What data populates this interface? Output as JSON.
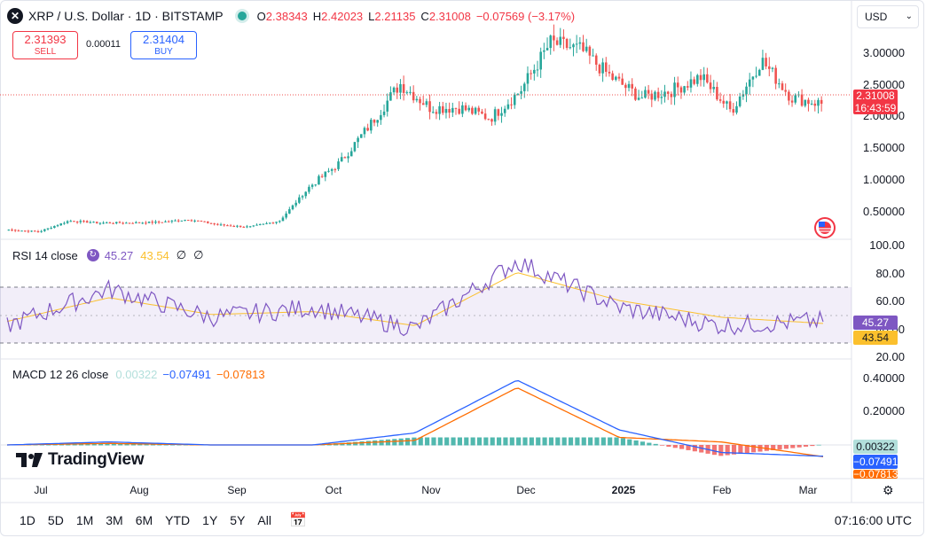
{
  "header": {
    "symbol_title": "XRP / U.S. Dollar · 1D · BITSTAMP",
    "open_label": "O",
    "open": "2.38343",
    "high_label": "H",
    "high": "2.42023",
    "low_label": "L",
    "low": "2.21135",
    "close_label": "C",
    "close": "2.31008",
    "change": "−0.07569 (−3.17%)"
  },
  "trade": {
    "sell_price": "2.31393",
    "sell_label": "SELL",
    "spread": "0.00011",
    "buy_price": "2.31404",
    "buy_label": "BUY"
  },
  "currency": "USD",
  "price_axis": {
    "ticks": [
      "3.00000",
      "2.50000",
      "2.00000",
      "1.50000",
      "1.00000",
      "0.50000"
    ],
    "last_price": "2.31008",
    "countdown": "16:43:59"
  },
  "rsi": {
    "label": "RSI 14 close",
    "value": "45.27",
    "ma_value": "43.54",
    "extra1": "∅",
    "extra2": "∅",
    "ticks": [
      "100.00",
      "80.00",
      "60.00",
      "40.00",
      "20.00"
    ]
  },
  "macd": {
    "label": "MACD 12 26 close",
    "histogram": "0.00322",
    "macd": "−0.07491",
    "signal": "−0.07813",
    "ticks": [
      "0.40000",
      "0.20000"
    ]
  },
  "time_axis": [
    "Jul",
    "Aug",
    "Sep",
    "Oct",
    "Nov",
    "Dec",
    "2025",
    "Feb",
    "Mar"
  ],
  "branding": "TradingView",
  "timeframes": [
    "1D",
    "5D",
    "1M",
    "3M",
    "6M",
    "YTD",
    "1Y",
    "5Y",
    "All"
  ],
  "clock": "07:16:00 UTC",
  "colors": {
    "up": "#26a69a",
    "down": "#ef5350",
    "rsi": "#7e57c2",
    "rsi_ma": "#fbc02d",
    "macd": "#2962ff",
    "signal": "#ff6d00"
  },
  "chart_data": [
    {
      "type": "candlestick",
      "title": "XRP / U.S. Dollar · 1D · BITSTAMP",
      "x": [
        "2024-07-01",
        "2024-07-15",
        "2024-08-01",
        "2024-08-15",
        "2024-09-01",
        "2024-09-15",
        "2024-10-01",
        "2024-10-15",
        "2024-11-01",
        "2024-11-10",
        "2024-11-20",
        "2024-11-25",
        "2024-12-01",
        "2024-12-03",
        "2024-12-10",
        "2024-12-20",
        "2025-01-01",
        "2025-01-10",
        "2025-01-16",
        "2025-01-25",
        "2025-02-01",
        "2025-02-03",
        "2025-02-10",
        "2025-02-20",
        "2025-03-01",
        "2025-03-02",
        "2025-03-03",
        "2025-03-04"
      ],
      "close": [
        0.47,
        0.44,
        0.6,
        0.57,
        0.57,
        0.58,
        0.62,
        0.54,
        0.51,
        0.6,
        1.1,
        1.45,
        2.0,
        2.6,
        2.25,
        2.25,
        2.1,
        2.5,
        3.2,
        3.1,
        2.7,
        2.4,
        2.5,
        2.7,
        2.2,
        2.95,
        2.4,
        2.31
      ],
      "ylim": [
        0.2,
        3.5
      ],
      "last_price": 2.31008
    },
    {
      "type": "line",
      "title": "RSI 14 close",
      "x": [
        "2024-07",
        "2024-08",
        "2024-09",
        "2024-10",
        "2024-11",
        "2024-12",
        "2025-01",
        "2025-02",
        "2025-03"
      ],
      "series": [
        {
          "name": "RSI",
          "values": [
            42,
            68,
            48,
            55,
            40,
            88,
            55,
            42,
            45.27
          ]
        },
        {
          "name": "RSI-based MA",
          "values": [
            45,
            62,
            50,
            52,
            42,
            80,
            60,
            48,
            43.54
          ]
        }
      ],
      "ylim": [
        20,
        100
      ],
      "bands": [
        30,
        70
      ]
    },
    {
      "type": "line",
      "title": "MACD 12 26 close",
      "x": [
        "2024-07",
        "2024-08",
        "2024-09",
        "2024-10",
        "2024-11",
        "2024-12",
        "2025-01",
        "2025-02",
        "2025-03"
      ],
      "series": [
        {
          "name": "Histogram",
          "values": [
            0.0,
            0.01,
            0.0,
            0.0,
            0.05,
            0.05,
            0.05,
            -0.08,
            0.00322
          ]
        },
        {
          "name": "MACD",
          "values": [
            0.0,
            0.02,
            0.0,
            0.0,
            0.08,
            0.43,
            0.1,
            -0.05,
            -0.07491
          ]
        },
        {
          "name": "Signal",
          "values": [
            0.0,
            0.01,
            0.0,
            0.0,
            0.03,
            0.38,
            0.05,
            0.02,
            -0.07813
          ]
        }
      ]
    }
  ]
}
